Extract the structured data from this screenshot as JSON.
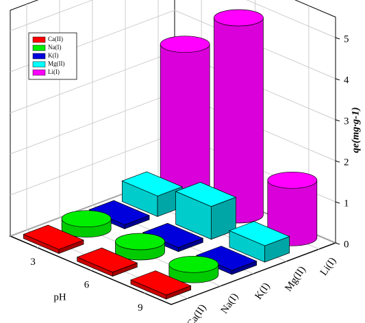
{
  "chart_data": {
    "type": "bar3d",
    "x_label": "pH",
    "z_label": "qe(mg·g-1)",
    "categories": [
      "3",
      "6",
      "9"
    ],
    "series": [
      {
        "name": "Ca(II)",
        "color": "#ff0000",
        "shape": "box",
        "values": [
          0.1,
          0.1,
          0.1
        ]
      },
      {
        "name": "Na(I)",
        "color": "#00ee00",
        "shape": "cylinder",
        "values": [
          0.25,
          0.25,
          0.25
        ]
      },
      {
        "name": "K(I)",
        "color": "#0000dd",
        "shape": "box",
        "values": [
          0.1,
          0.1,
          0.1
        ]
      },
      {
        "name": "Mg(II)",
        "color": "#00ffff",
        "shape": "box",
        "values": [
          0.5,
          0.8,
          0.4
        ]
      },
      {
        "name": "Li(I)",
        "color": "#ff00ff",
        "shape": "cylinder",
        "values": [
          3.6,
          4.8,
          1.4
        ]
      }
    ],
    "zlim": [
      0,
      5.5
    ],
    "zticks": [
      0,
      1,
      2,
      3,
      4,
      5
    ],
    "grid": true,
    "legend": "upper left"
  }
}
